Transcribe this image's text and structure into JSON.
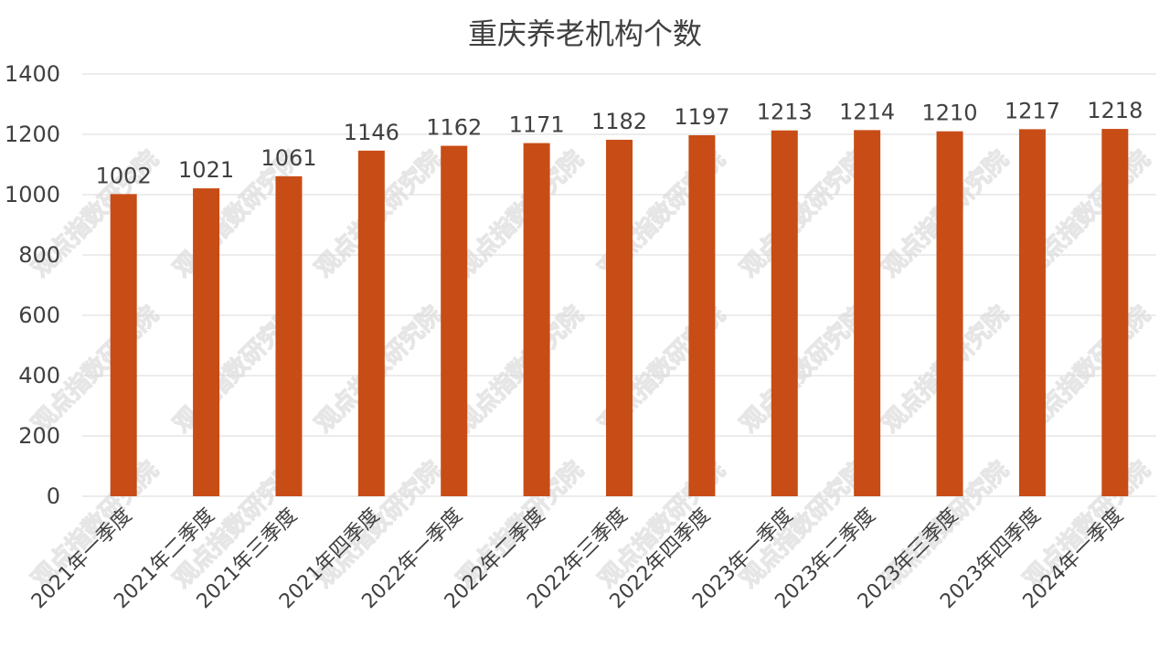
{
  "watermark_text": "观点指数研究院",
  "chart_data": {
    "type": "bar",
    "title": "重庆养老机构个数",
    "xlabel": "",
    "ylabel": "",
    "ylim": [
      0,
      1400
    ],
    "yticks": [
      0,
      200,
      400,
      600,
      800,
      1000,
      1200,
      1400
    ],
    "grid": true,
    "bar_color": "#C84C16",
    "categories": [
      "2021年一季度",
      "2021年二季度",
      "2021年三季度",
      "2021年四季度",
      "2022年一季度",
      "2022年二季度",
      "2022年三季度",
      "2022年四季度",
      "2023年一季度",
      "2023年二季度",
      "2023年三季度",
      "2023年四季度",
      "2024年一季度"
    ],
    "values": [
      1002,
      1021,
      1061,
      1146,
      1162,
      1171,
      1182,
      1197,
      1213,
      1214,
      1210,
      1217,
      1218
    ]
  }
}
